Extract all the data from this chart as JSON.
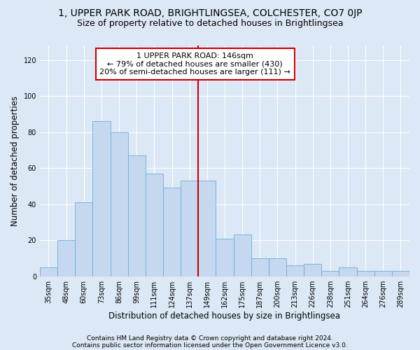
{
  "title1": "1, UPPER PARK ROAD, BRIGHTLINGSEA, COLCHESTER, CO7 0JP",
  "title2": "Size of property relative to detached houses in Brightlingsea",
  "xlabel": "Distribution of detached houses by size in Brightlingsea",
  "ylabel": "Number of detached properties",
  "categories": [
    "35sqm",
    "48sqm",
    "60sqm",
    "73sqm",
    "86sqm",
    "99sqm",
    "111sqm",
    "124sqm",
    "137sqm",
    "149sqm",
    "162sqm",
    "175sqm",
    "187sqm",
    "200sqm",
    "213sqm",
    "226sqm",
    "238sqm",
    "251sqm",
    "264sqm",
    "276sqm",
    "289sqm"
  ],
  "values": [
    5,
    20,
    41,
    86,
    80,
    67,
    57,
    49,
    53,
    53,
    21,
    23,
    10,
    10,
    6,
    7,
    3,
    5,
    3,
    3,
    3
  ],
  "bar_color": "#c5d8ef",
  "bar_edge_color": "#6baed6",
  "vline_x_idx": 9,
  "vline_color": "#cc0000",
  "annotation_line1": "1 UPPER PARK ROAD: 146sqm",
  "annotation_line2": "← 79% of detached houses are smaller (430)",
  "annotation_line3": "20% of semi-detached houses are larger (111) →",
  "annotation_box_color": "#ffffff",
  "annotation_box_edge_color": "#cc0000",
  "ylim": [
    0,
    128
  ],
  "yticks": [
    0,
    20,
    40,
    60,
    80,
    100,
    120
  ],
  "footer1": "Contains HM Land Registry data © Crown copyright and database right 2024.",
  "footer2": "Contains public sector information licensed under the Open Government Licence v3.0.",
  "bg_color": "#dce8f5",
  "plot_bg_color": "#dce8f5",
  "title1_fontsize": 10,
  "title2_fontsize": 9,
  "xlabel_fontsize": 8.5,
  "ylabel_fontsize": 8.5,
  "tick_fontsize": 7,
  "footer_fontsize": 6.5,
  "annotation_fontsize": 8
}
